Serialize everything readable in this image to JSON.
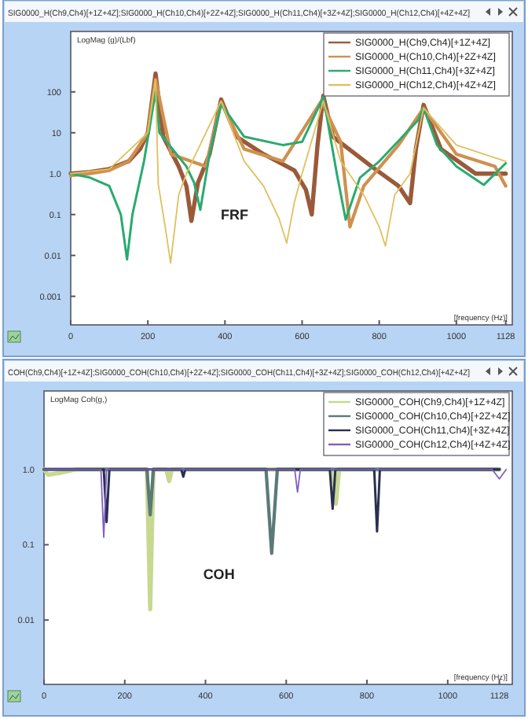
{
  "chart_data": [
    {
      "type": "line",
      "title": "SIG0000_H(Ch9,Ch4)[+1Z+4Z];SIG0000_H(Ch10,Ch4)[+2Z+4Z];SIG0000_H(Ch11,Ch4)[+3Z+4Z];SIG0000_H(Ch12,Ch4)[+4Z+4Z]",
      "ylabel": "LogMag (g)/(Lbf)",
      "xlabel": "[frequency (Hz)]",
      "annotations": [
        "FRF"
      ],
      "log": true,
      "legend": "top right",
      "xlim": [
        0,
        1145
      ],
      "ylim": [
        0.0002,
        3000
      ],
      "xticks": [
        0,
        200,
        400,
        600,
        800,
        1000,
        1128
      ],
      "yticks": [
        {
          "value": 0.001,
          "label": "0.001"
        },
        {
          "value": 0.01,
          "label": "0.01"
        },
        {
          "value": 0.1,
          "label": "0.1"
        },
        {
          "value": 1,
          "label": "1.0"
        },
        {
          "value": 10,
          "label": "10"
        },
        {
          "value": 100,
          "label": "100"
        }
      ],
      "series": [
        {
          "name": "SIG0000_H(Ch9,Ch4)[+1Z+4Z]",
          "color": "#9a5a3a",
          "x": [
            0,
            50,
            100,
            150,
            180,
            200,
            220,
            240,
            280,
            300,
            313,
            330,
            360,
            390,
            430,
            500,
            580,
            610,
            625,
            640,
            655,
            680,
            780,
            850,
            880,
            895,
            915,
            960,
            1050,
            1128
          ],
          "values": [
            1.0,
            1.1,
            1.3,
            2,
            4,
            10,
            280,
            8,
            1.5,
            0.5,
            0.07,
            0.6,
            3,
            65,
            8,
            3,
            1.2,
            0.4,
            0.1,
            5,
            80,
            8,
            1.5,
            0.5,
            0.19,
            4,
            48,
            4,
            1.0,
            1.0
          ]
        },
        {
          "name": "SIG0000_H(Ch10,Ch4)[+2Z+4Z]",
          "color": "#d09050",
          "x": [
            0,
            50,
            100,
            150,
            200,
            220,
            260,
            350,
            390,
            450,
            550,
            650,
            700,
            724,
            760,
            850,
            915,
            1000,
            1100,
            1128
          ],
          "values": [
            0.9,
            1.0,
            1.2,
            2,
            10,
            200,
            3,
            1.5,
            55,
            4,
            2,
            60,
            6,
            0.05,
            0.5,
            5,
            40,
            3,
            1.5,
            0.5
          ]
        },
        {
          "name": "SIG0000_H(Ch11,Ch4)[+3Z+4Z]",
          "color": "#2aaa70",
          "x": [
            0,
            50,
            100,
            130,
            146,
            160,
            190,
            220,
            230,
            300,
            320,
            336,
            360,
            390,
            450,
            550,
            600,
            655,
            690,
            713,
            750,
            800,
            900,
            915,
            950,
            1000,
            1071,
            1128
          ],
          "values": [
            1.0,
            0.8,
            0.5,
            0.1,
            0.008,
            0.1,
            2,
            100,
            10,
            1.5,
            0.6,
            0.13,
            3,
            50,
            8,
            5,
            6,
            75,
            1,
            0.075,
            0.8,
            2,
            20,
            40,
            5,
            1.5,
            0.53,
            1.8
          ]
        },
        {
          "name": "SIG0000_H(Ch12,Ch4)[+4Z+4Z]",
          "color": "#e0c060",
          "x": [
            0,
            100,
            200,
            220,
            227,
            245,
            259,
            280,
            300,
            390,
            450,
            500,
            540,
            560,
            580,
            600,
            655,
            700,
            760,
            800,
            816,
            840,
            880,
            915,
            1000,
            1128
          ],
          "values": [
            1.0,
            1.3,
            10,
            200,
            0.55,
            0.05,
            0.0065,
            0.3,
            1,
            60,
            2,
            0.5,
            0.08,
            0.02,
            0.2,
            1,
            60,
            2,
            0.3,
            0.05,
            0.017,
            0.3,
            1,
            40,
            5,
            2
          ]
        }
      ]
    },
    {
      "type": "line",
      "title": "COH(Ch9,Ch4)[+1Z+4Z];SIG0000_COH(Ch10,Ch4)[+2Z+4Z];SIG0000_COH(Ch11,Ch4)[+3Z+4Z];SIG0000_COH(Ch12,Ch4)[+4Z+4Z]",
      "ylabel": "LogMag Coh(g,)",
      "xlabel": "[frequency (Hz)]",
      "annotations": [
        "COH"
      ],
      "log": true,
      "legend": "top right",
      "xlim": [
        0,
        1160
      ],
      "ylim": [
        0.0014,
        11
      ],
      "xticks": [
        0,
        200,
        400,
        600,
        800,
        1000,
        1128
      ],
      "yticks": [
        {
          "value": 0.01,
          "label": "0.01"
        },
        {
          "value": 0.1,
          "label": "0.1"
        },
        {
          "value": 1,
          "label": "1.0"
        }
      ],
      "series": [
        {
          "name": "SIG0000_COH(Ch9,Ch4)[+1Z+4Z]",
          "color": "#c8d890",
          "x": [
            0,
            10,
            40,
            80,
            255,
            263,
            271,
            303,
            310,
            317,
            715,
            723,
            731,
            1128
          ],
          "values": [
            1.0,
            0.85,
            0.9,
            1.0,
            1.0,
            0.014,
            1.0,
            1.0,
            0.7,
            1.0,
            1.0,
            0.35,
            1.0,
            1.0
          ]
        },
        {
          "name": "SIG0000_COH(Ch10,Ch4)[+2Z+4Z]",
          "color": "#5a7a78",
          "x": [
            0,
            255,
            263,
            271,
            550,
            564,
            578,
            1128
          ],
          "values": [
            1.0,
            1.0,
            0.25,
            1.0,
            1.0,
            0.077,
            1.0,
            1.0
          ]
        },
        {
          "name": "SIG0000_COH(Ch11,Ch4)[+3Z+4Z]",
          "color": "#2a3050",
          "x": [
            0,
            148,
            155,
            162,
            340,
            345,
            350,
            708,
            715,
            722,
            818,
            825,
            832,
            1128
          ],
          "values": [
            1.0,
            1.0,
            0.2,
            1.0,
            1.0,
            0.8,
            1.0,
            1.0,
            0.3,
            1.0,
            1.0,
            0.15,
            1.0,
            1.0
          ]
        },
        {
          "name": "SIG0000_COH(Ch12,Ch4)[+4Z+4Z]",
          "color": "#8060c0",
          "x": [
            0,
            141,
            148,
            155,
            621,
            628,
            635,
            1110,
            1128,
            1145
          ],
          "values": [
            1.0,
            1.0,
            0.126,
            1.0,
            1.0,
            0.5,
            1.0,
            1.0,
            0.75,
            1.0
          ]
        }
      ]
    }
  ]
}
